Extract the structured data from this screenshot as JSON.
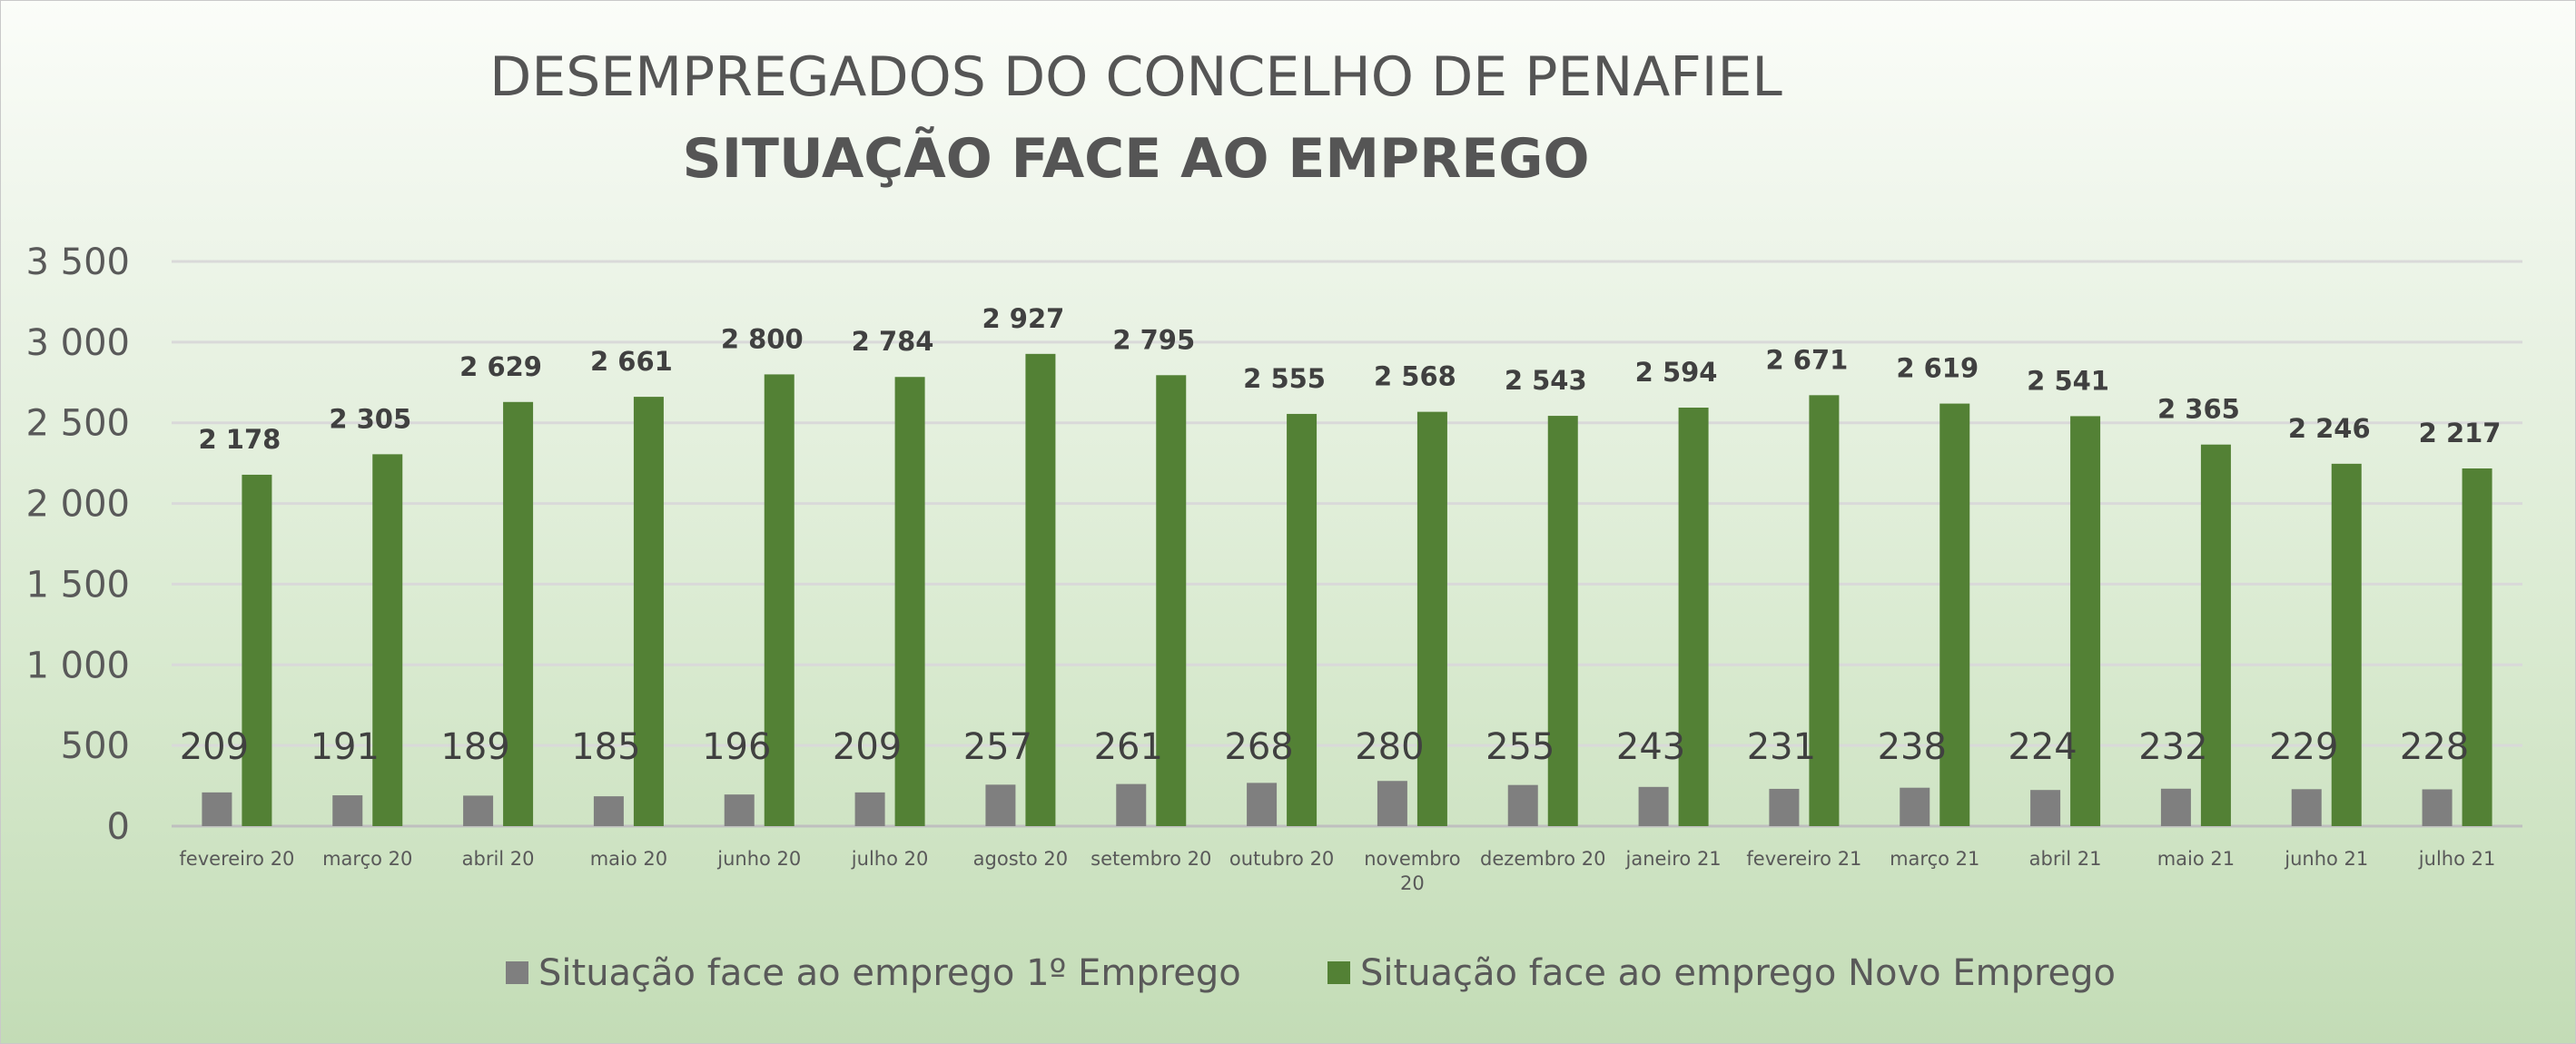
{
  "chart_data": {
    "type": "bar",
    "title": "DESEMPREGADOS DO CONCELHO DE PENAFIEL",
    "subtitle": "SITUAÇÃO FACE AO EMPREGO",
    "xlabel": "",
    "ylabel": "",
    "ylim": [
      0,
      3500
    ],
    "yticks": [
      0,
      500,
      1000,
      1500,
      2000,
      2500,
      3000,
      3500
    ],
    "ytick_labels": [
      "0",
      "500",
      "1 000",
      "1 500",
      "2 000",
      "2 500",
      "3 000",
      "3 500"
    ],
    "grid": true,
    "legend_position": "bottom",
    "categories": [
      "fevereiro 20",
      "março 20",
      "abril 20",
      "maio 20",
      "junho 20",
      "julho 20",
      "agosto 20",
      "setembro 20",
      "outubro 20",
      "novembro 20",
      "dezembro 20",
      "janeiro 21",
      "fevereiro 21",
      "março 21",
      "abril 21",
      "maio 21",
      "junho 21",
      "julho 21"
    ],
    "series": [
      {
        "name": "Situação face ao emprego 1º Emprego",
        "color": "#7f7f7f",
        "values": [
          209,
          191,
          189,
          185,
          196,
          209,
          257,
          261,
          268,
          280,
          255,
          243,
          231,
          238,
          224,
          232,
          229,
          228
        ],
        "labels": [
          "209",
          "191",
          "189",
          "185",
          "196",
          "209",
          "257",
          "261",
          "268",
          "280",
          "255",
          "243",
          "231",
          "238",
          "224",
          "232",
          "229",
          "228"
        ]
      },
      {
        "name": "Situação face ao emprego Novo Emprego",
        "color": "#538135",
        "values": [
          2178,
          2305,
          2629,
          2661,
          2800,
          2784,
          2927,
          2795,
          2555,
          2568,
          2543,
          2594,
          2671,
          2619,
          2541,
          2365,
          2246,
          2217
        ],
        "labels": [
          "2 178",
          "2 305",
          "2 629",
          "2 661",
          "2 800",
          "2 784",
          "2 927",
          "2 795",
          "2 555",
          "2 568",
          "2 543",
          "2 594",
          "2 671",
          "2 619",
          "2 541",
          "2 365",
          "2 246",
          "2 217"
        ]
      }
    ]
  }
}
